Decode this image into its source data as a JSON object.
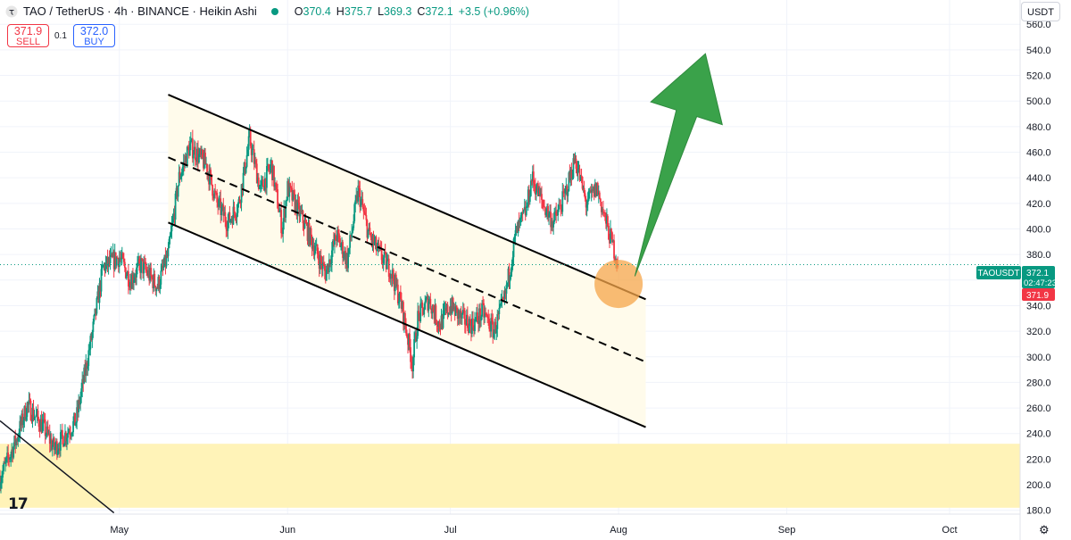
{
  "header": {
    "title": "TAO / TetherUS · 4h · BINANCE · Heikin Ashi",
    "ohlc": [
      {
        "label": "O",
        "value": "370.4"
      },
      {
        "label": "H",
        "value": "375.7"
      },
      {
        "label": "L",
        "value": "369.3"
      },
      {
        "label": "C",
        "value": "372.1"
      }
    ],
    "change": "+3.5 (+0.96%)"
  },
  "trade": {
    "sell_price": "371.9",
    "sell_label": "SELL",
    "spread": "0.1",
    "buy_price": "372.0",
    "buy_label": "BUY"
  },
  "currency_button": "USDT",
  "colors": {
    "up": "#089981",
    "down": "#f23645",
    "arrow": "#3aa24a",
    "zone": "#fff3b8",
    "channel_fill": "#fffbeb",
    "marker": "#f5a54a"
  },
  "icons": {
    "logo": "tradingview-logo-icon",
    "settings": "gear-icon"
  },
  "price_labels": {
    "symbol": "TAOUSDT",
    "last": "372.1",
    "countdown": "02:47:23",
    "bid": "371.9"
  },
  "chart_data": {
    "type": "candlestick",
    "style": "Heikin Ashi",
    "interval": "4h",
    "y_axis": {
      "ticks": [
        180,
        200,
        220,
        240,
        260,
        280,
        300,
        320,
        340,
        360,
        380,
        400,
        420,
        440,
        460,
        480,
        500,
        520,
        540,
        560
      ],
      "tick_labels": [
        "180.0",
        "200.0",
        "220.0",
        "240.0",
        "260.0",
        "280.0",
        "300.0",
        "320.0",
        "340.0",
        "360.0",
        "380.0",
        "400.0",
        "420.0",
        "440.0",
        "460.0",
        "480.0",
        "500.0",
        "520.0",
        "540.0",
        "560.0"
      ],
      "ylim": [
        177,
        579
      ]
    },
    "x_axis": {
      "tick_labels": [
        "May",
        "Jun",
        "Jul",
        "Aug",
        "Sep",
        "Oct"
      ],
      "tick_dates": [
        "2024-05-01",
        "2024-06-01",
        "2024-07-01",
        "2024-08-01",
        "2024-09-01",
        "2024-10-01"
      ],
      "xlim": [
        "2024-04-09",
        "2024-10-14"
      ]
    },
    "grid": true,
    "price_path": [
      [
        "2024-04-09",
        205
      ],
      [
        "2024-04-12",
        235
      ],
      [
        "2024-04-14",
        262
      ],
      [
        "2024-04-17",
        245
      ],
      [
        "2024-04-19",
        228
      ],
      [
        "2024-04-23",
        250
      ],
      [
        "2024-04-26",
        318
      ],
      [
        "2024-04-28",
        370
      ],
      [
        "2024-05-01",
        378
      ],
      [
        "2024-05-03",
        360
      ],
      [
        "2024-05-05",
        372
      ],
      [
        "2024-05-08",
        355
      ],
      [
        "2024-05-10",
        380
      ],
      [
        "2024-05-12",
        440
      ],
      [
        "2024-05-14",
        465
      ],
      [
        "2024-05-17",
        450
      ],
      [
        "2024-05-19",
        420
      ],
      [
        "2024-05-21",
        405
      ],
      [
        "2024-05-23",
        420
      ],
      [
        "2024-05-25",
        470
      ],
      [
        "2024-05-27",
        430
      ],
      [
        "2024-05-29",
        450
      ],
      [
        "2024-05-31",
        400
      ],
      [
        "2024-06-01",
        432
      ],
      [
        "2024-06-04",
        405
      ],
      [
        "2024-06-06",
        385
      ],
      [
        "2024-06-08",
        365
      ],
      [
        "2024-06-10",
        395
      ],
      [
        "2024-06-12",
        375
      ],
      [
        "2024-06-14",
        430
      ],
      [
        "2024-06-16",
        395
      ],
      [
        "2024-06-18",
        380
      ],
      [
        "2024-06-20",
        368
      ],
      [
        "2024-06-22",
        340
      ],
      [
        "2024-06-23",
        318
      ],
      [
        "2024-06-24",
        295
      ],
      [
        "2024-06-25",
        330
      ],
      [
        "2024-06-27",
        345
      ],
      [
        "2024-06-29",
        325
      ],
      [
        "2024-07-01",
        340
      ],
      [
        "2024-07-03",
        330
      ],
      [
        "2024-07-05",
        325
      ],
      [
        "2024-07-07",
        335
      ],
      [
        "2024-07-09",
        320
      ],
      [
        "2024-07-11",
        345
      ],
      [
        "2024-07-13",
        395
      ],
      [
        "2024-07-15",
        415
      ],
      [
        "2024-07-16",
        440
      ],
      [
        "2024-07-18",
        420
      ],
      [
        "2024-07-20",
        405
      ],
      [
        "2024-07-22",
        425
      ],
      [
        "2024-07-24",
        455
      ],
      [
        "2024-07-26",
        420
      ],
      [
        "2024-07-28",
        432
      ],
      [
        "2024-07-30",
        400
      ],
      [
        "2024-08-01",
        372
      ]
    ],
    "annotations": {
      "channel_upper": [
        [
          "2024-05-10",
          505
        ],
        [
          "2024-08-06",
          345
        ]
      ],
      "channel_middle": [
        [
          "2024-05-10",
          456
        ],
        [
          "2024-08-06",
          296
        ]
      ],
      "channel_lower": [
        [
          "2024-05-10",
          405
        ],
        [
          "2024-08-06",
          245
        ]
      ],
      "descending_trendline": [
        [
          "2024-04-09",
          250
        ],
        [
          "2024-04-30",
          178
        ]
      ],
      "support_zone": [
        182,
        232
      ],
      "breakout_marker": [
        "2024-08-01",
        357
      ],
      "projection_arrow": {
        "from": [
          "2024-08-04",
          363
        ],
        "to": [
          "2024-08-17",
          537
        ]
      }
    }
  }
}
